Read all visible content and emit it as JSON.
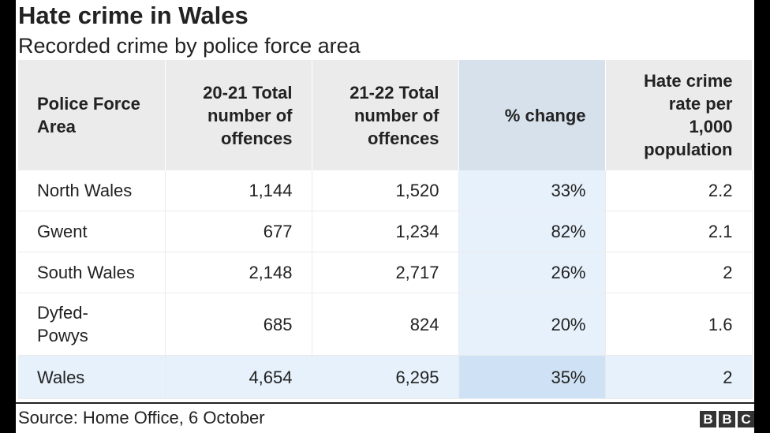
{
  "header": {
    "title": "Hate crime in Wales",
    "subtitle": "Recorded crime by police force area"
  },
  "footer": {
    "source": "Source: Home Office, 6 October",
    "logo_letters": [
      "B",
      "B",
      "C"
    ]
  },
  "colors": {
    "header_bg": "#ebebeb",
    "pct_header_bg": "#d6e1ec",
    "pct_cell_bg": "#e6f1fb",
    "total_row_bg": "#e6f1fb",
    "total_pct_bg": "#cfe2f5"
  },
  "chart_data": {
    "type": "table",
    "title": "Hate crime in Wales",
    "subtitle": "Recorded crime by police force area",
    "columns": [
      "Police Force Area",
      "20-21 Total number of offences",
      "21-22 Total number of offences",
      "% change",
      "Hate crime rate per 1,000 population"
    ],
    "rows": [
      [
        "North Wales",
        "1,144",
        "1,520",
        "33%",
        "2.2"
      ],
      [
        "Gwent",
        "677",
        "1,234",
        "82%",
        "2.1"
      ],
      [
        "South Wales",
        "2,148",
        "2,717",
        "26%",
        "2"
      ],
      [
        "Dyfed-Powys",
        "685",
        "824",
        "20%",
        "1.6"
      ],
      [
        "Wales",
        "4,654",
        "6,295",
        "35%",
        "2"
      ]
    ]
  }
}
